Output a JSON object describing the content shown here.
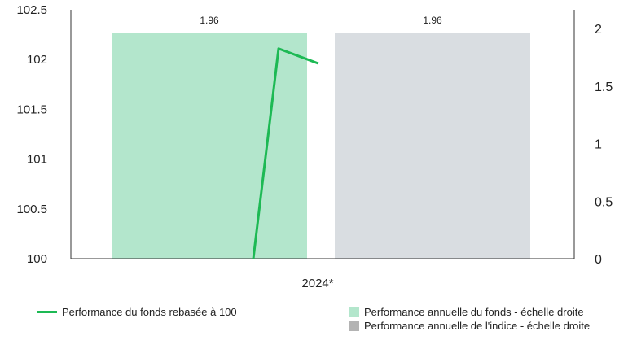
{
  "chart_data": {
    "type": "bar+line",
    "categories": [
      "2024*"
    ],
    "left_axis": {
      "ylim": [
        100,
        102.5
      ],
      "ticks": [
        "100",
        "100.5",
        "101",
        "101.5",
        "102",
        "102.5"
      ],
      "tick_values": [
        100,
        100.5,
        101,
        101.5,
        102,
        102.5
      ]
    },
    "right_axis": {
      "ylim": [
        0,
        2
      ],
      "ticks": [
        "0",
        "0.5",
        "1",
        "1.5",
        "2"
      ],
      "tick_values": [
        0,
        0.5,
        1,
        1.5,
        2
      ]
    },
    "bars": [
      {
        "name": "Performance annuelle du fonds - échelle droite",
        "value": 1.96,
        "label": "1.96",
        "color": "#b3e6cc"
      },
      {
        "name": "Performance annuelle de l'indice - échelle droite",
        "value": 1.96,
        "label": "1.96",
        "color": "#d9dde1"
      }
    ],
    "line": {
      "name": "Performance du fonds rebasée à 100",
      "color": "#1db954",
      "points": [
        {
          "x": 0.0,
          "y": 100.0
        },
        {
          "x": 0.12,
          "y": 102.11
        },
        {
          "x": 0.33,
          "y": 101.96
        }
      ]
    },
    "legend": {
      "line_label": "Performance du fonds rebasée à 100",
      "fund_bar_label": "Performance annuelle du fonds - échelle droite",
      "index_bar_label": "Performance annuelle de l'indice - échelle droite",
      "index_swatch_color": "#b3b3b3"
    },
    "grid": false
  }
}
